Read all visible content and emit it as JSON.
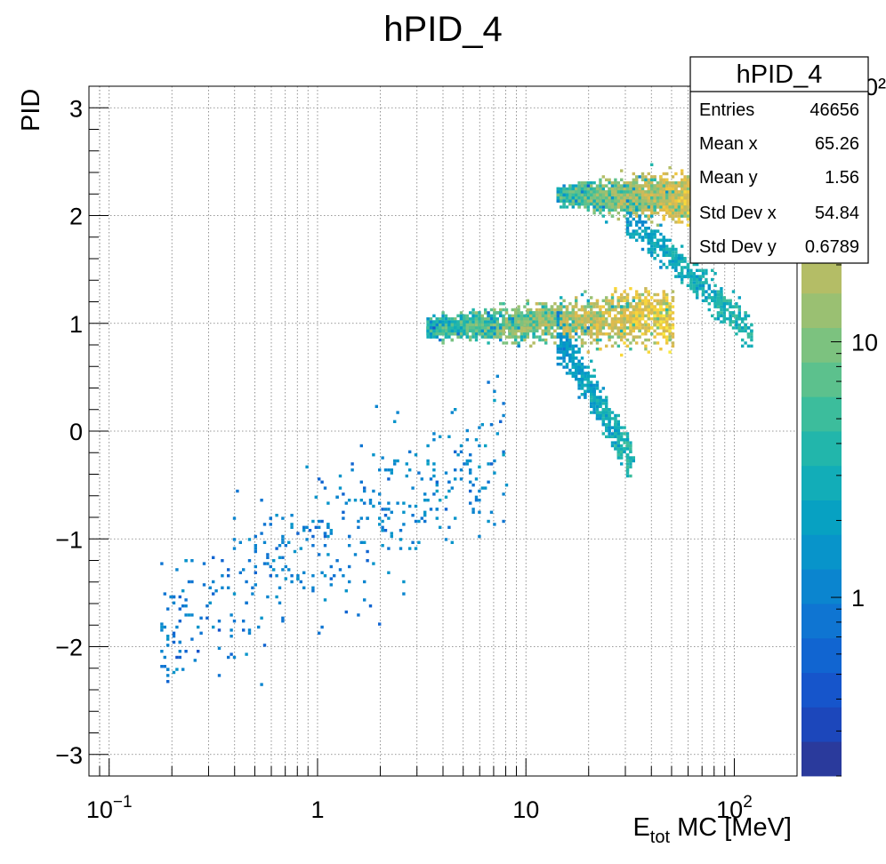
{
  "chart_data": {
    "type": "heatmap",
    "title": "hPID_4",
    "xlabel": "E",
    "xlabel_sub": "tot",
    "xlabel_rest": " MC [MeV]",
    "ylabel": "PID",
    "x_scale": "log",
    "xlim": [
      0.08,
      200
    ],
    "ylim": [
      -3.2,
      3.2
    ],
    "z_scale": "log",
    "zlim": [
      0.2,
      100
    ],
    "grid": true,
    "x_tick_labels": [
      {
        "value": 0.1,
        "base": "10",
        "exp": "−1"
      },
      {
        "value": 1,
        "base": "1",
        "exp": ""
      },
      {
        "value": 10,
        "base": "10",
        "exp": ""
      },
      {
        "value": 100,
        "base": "10",
        "exp": "2"
      }
    ],
    "y_ticks": [
      {
        "value": 3,
        "label": "3"
      },
      {
        "value": 2,
        "label": "2"
      },
      {
        "value": 1,
        "label": "1"
      },
      {
        "value": 0,
        "label": "0"
      },
      {
        "value": -1,
        "label": "−1"
      },
      {
        "value": -2,
        "label": "−2"
      },
      {
        "value": -3,
        "label": "−3"
      }
    ],
    "z_ticks": [
      {
        "value": 1,
        "label": "1"
      },
      {
        "value": 10,
        "label": "10"
      },
      {
        "value": 100,
        "label": "10²"
      }
    ],
    "palette": [
      "#2a3a9c",
      "#1c47bb",
      "#1655cb",
      "#1165d1",
      "#0f75d2",
      "#0b85cf",
      "#0894ca",
      "#07a1c2",
      "#12adb8",
      "#22b6ab",
      "#3cbd9c",
      "#5cc18d",
      "#7cc27f",
      "#9ac072",
      "#b4bd66",
      "#cbb95b",
      "#debb4e",
      "#eec63f",
      "#f8d73a",
      "#f9ea41"
    ],
    "bands": [
      {
        "name": "band-PID2",
        "x": [
          14,
          70
        ],
        "y_start": 2.2,
        "y_end": 2.17,
        "z_start": 10,
        "z_end": 80,
        "width": 0.06
      },
      {
        "name": "band-PID1",
        "x": [
          3.3,
          50
        ],
        "y_start": 0.97,
        "y_end": 1.08,
        "z_start": 8,
        "z_end": 100,
        "width": 0.07
      },
      {
        "name": "tail-upper",
        "x": [
          30,
          120
        ],
        "y_start": 2.0,
        "y_end": 0.95,
        "z_start": 2,
        "z_end": 4,
        "width": 0.08
      },
      {
        "name": "tail-lower",
        "x": [
          14,
          32
        ],
        "y_start": 0.9,
        "y_end": -0.25,
        "z_start": 1.5,
        "z_end": 4,
        "width": 0.09
      },
      {
        "name": "scatter-diagonal",
        "x": [
          0.17,
          8
        ],
        "y_start": -1.85,
        "y_end": -0.1,
        "z_start": 0.9,
        "z_end": 1.3,
        "width": 0.35
      }
    ],
    "stats": {
      "title": "hPID_4",
      "rows": [
        {
          "label": "Entries",
          "value": "46656"
        },
        {
          "label": "Mean x",
          "value": "65.26"
        },
        {
          "label": "Mean y",
          "value": "1.56"
        },
        {
          "label": "Std Dev x",
          "value": "54.84"
        },
        {
          "label": "Std Dev y",
          "value": "0.6789"
        }
      ]
    }
  }
}
